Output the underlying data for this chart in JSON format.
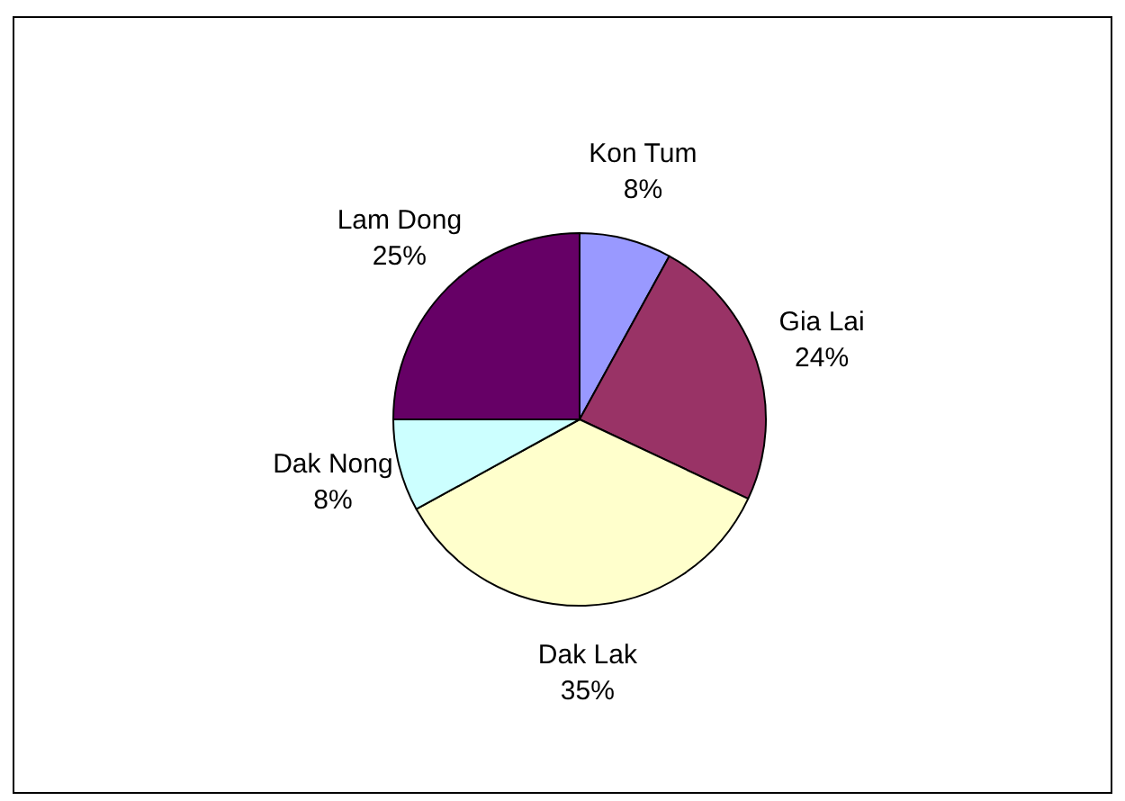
{
  "chart_data": {
    "type": "pie",
    "categories": [
      "Kon Tum",
      "Gia Lai",
      "Dak Lak",
      "Dak Nong",
      "Lam Dong"
    ],
    "values": [
      8,
      24,
      35,
      8,
      25
    ],
    "value_labels": [
      "8%",
      "24%",
      "35%",
      "8%",
      "25%"
    ],
    "colors": [
      "#9999ff",
      "#993366",
      "#ffffcc",
      "#ccffff",
      "#660066"
    ],
    "legend": false
  }
}
